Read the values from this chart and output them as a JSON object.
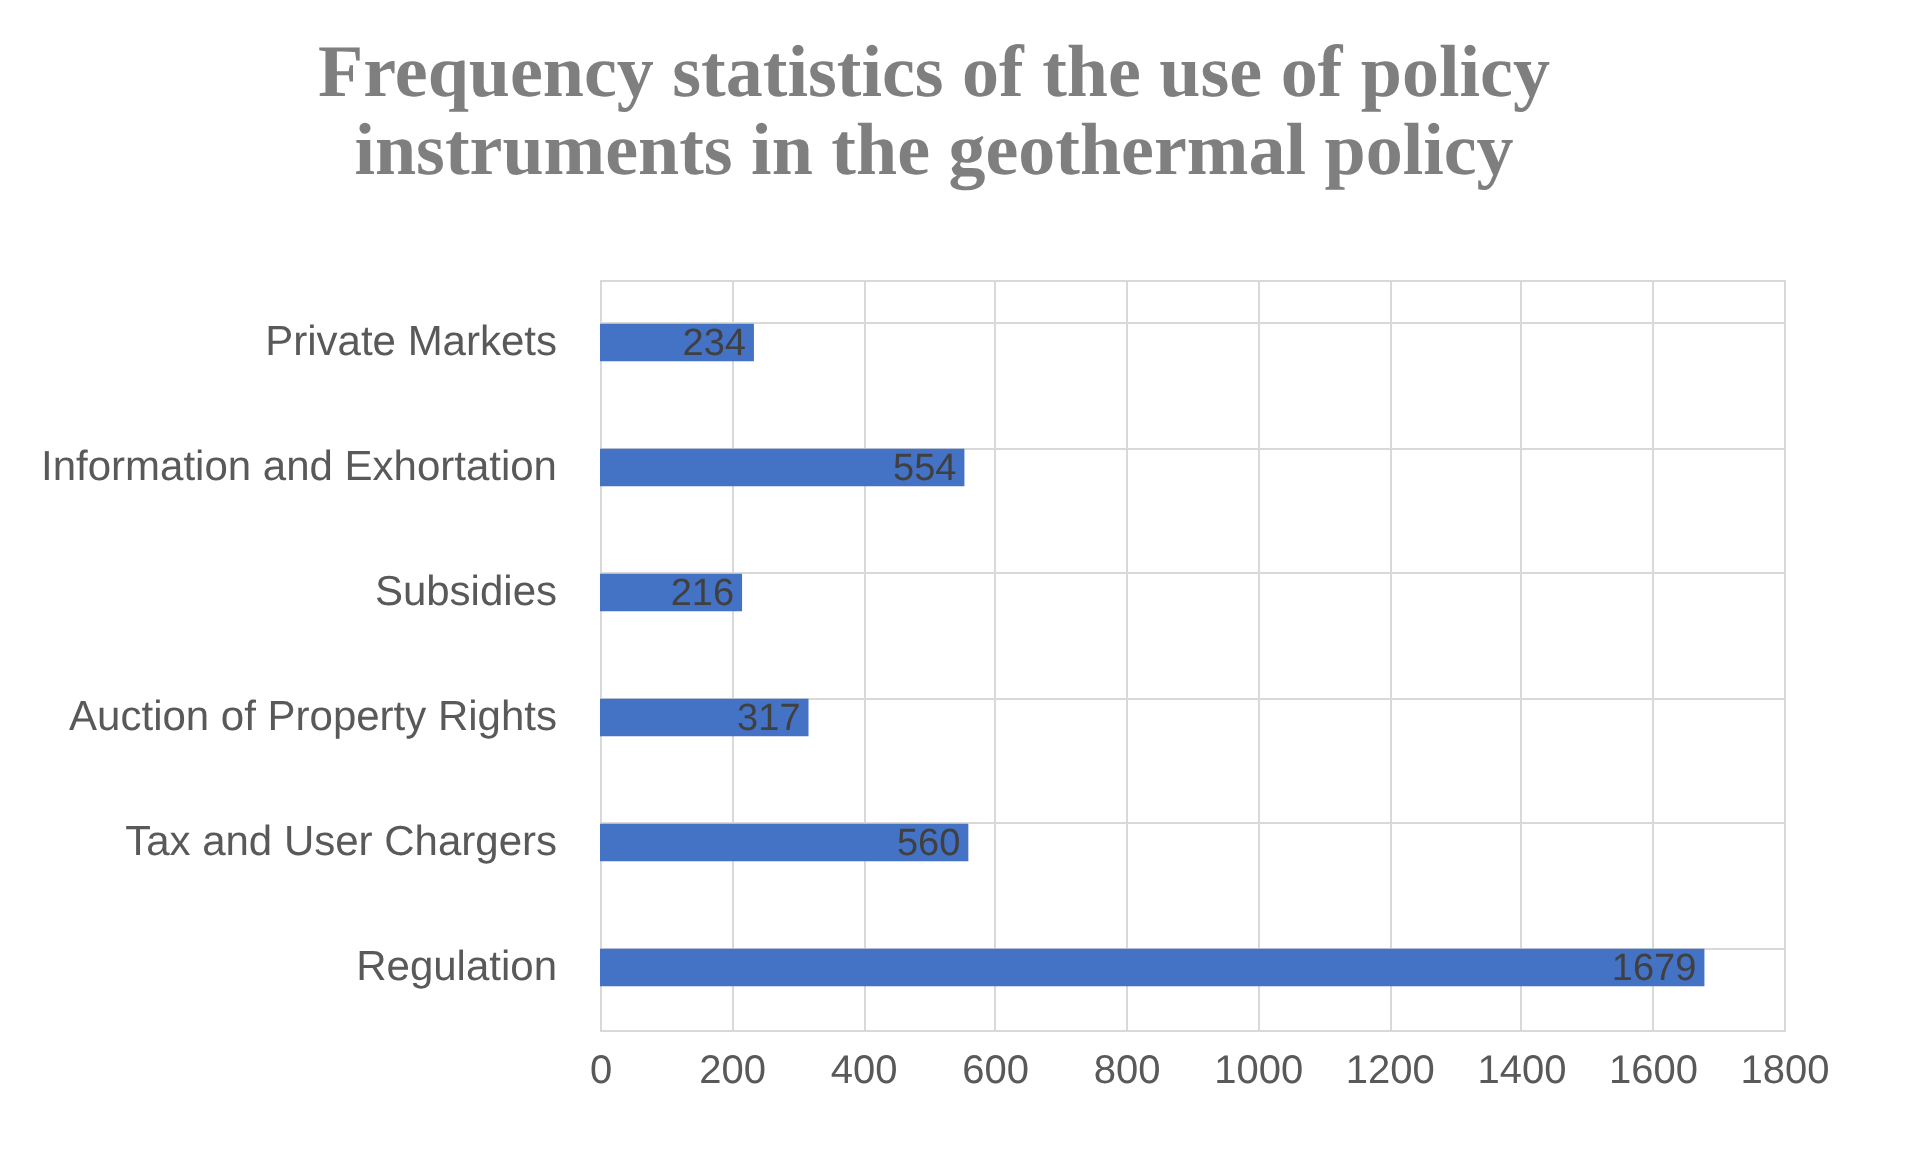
{
  "chart_data": {
    "type": "bar",
    "orientation": "horizontal",
    "title": "Frequency statistics of the use of policy instruments in the geothermal policy",
    "categories": [
      "Private Markets",
      "Information and Exhortation",
      "Subsidies",
      "Auction of Property Rights",
      "Tax and User Chargers",
      "Regulation"
    ],
    "values": [
      234,
      554,
      216,
      317,
      560,
      1679
    ],
    "color": "#4472c4",
    "xlim": [
      0,
      1800
    ],
    "xticks": [
      0,
      200,
      400,
      600,
      800,
      1000,
      1200,
      1400,
      1600,
      1800
    ],
    "grid": true,
    "data_labels": true
  }
}
